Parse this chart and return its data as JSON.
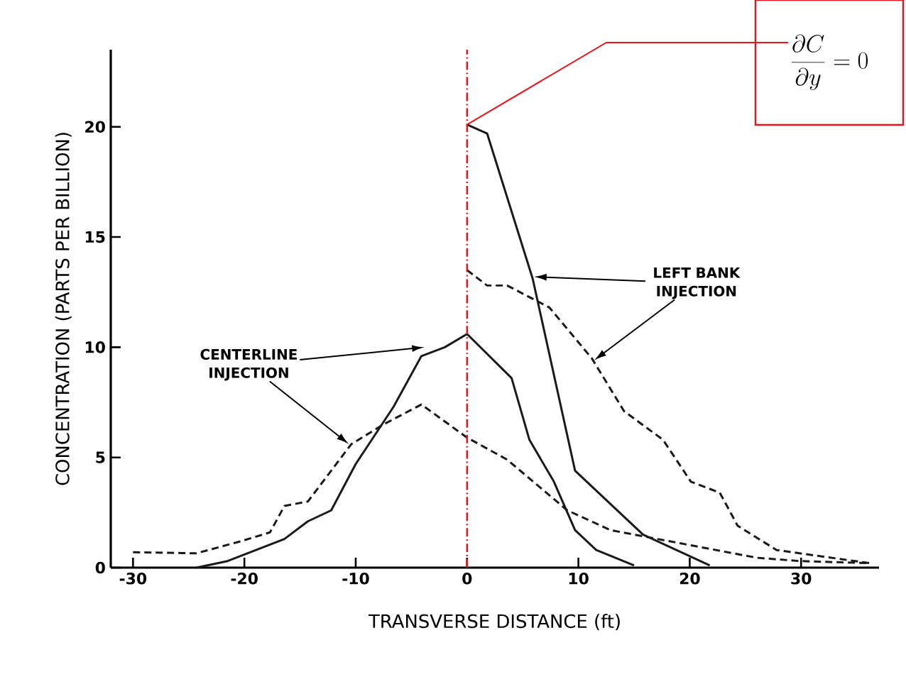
{
  "chart_data": {
    "type": "line",
    "xlabel": "TRANSVERSE DISTANCE (ft)",
    "ylabel": "CONCENTRATION (PARTS PER BILLION)",
    "xlim": [
      -32,
      37
    ],
    "ylim": [
      0,
      23.5
    ],
    "xticks": [
      -30,
      -20,
      -10,
      0,
      10,
      20,
      30
    ],
    "yticks": [
      0,
      5,
      10,
      15,
      20
    ],
    "grid": false,
    "marker": "none",
    "series": [
      {
        "color": "#1a1a1a",
        "line_style": "solid",
        "x": [
          -24.3,
          -21.5,
          -16.4,
          -14.3,
          -12.2,
          -10,
          -6.6,
          -4.1,
          -2,
          0,
          4,
          5.6,
          7.8,
          9.7,
          11.6,
          15
        ],
        "values": [
          0,
          0.3,
          1.3,
          2.1,
          2.6,
          4.7,
          7.3,
          9.6,
          10,
          10.6,
          8.6,
          5.8,
          3.9,
          1.7,
          0.8,
          0.1
        ]
      },
      {
        "color": "#1a1a1a",
        "line_style": "dashed",
        "x": [
          -30,
          -24.3,
          -20.3,
          -17.7,
          -16.4,
          -14.3,
          -10.4,
          -7.5,
          -4.1,
          0,
          3.6,
          9,
          12.9,
          19.2,
          26,
          29.8,
          36.2
        ],
        "values": [
          0.7,
          0.65,
          1.2,
          1.6,
          2.8,
          3,
          5.6,
          6.5,
          7.4,
          5.9,
          4.9,
          2.6,
          1.7,
          1.1,
          0.45,
          0.3,
          0.2
        ]
      },
      {
        "color": "#1a1a1a",
        "line_style": "solid",
        "x": [
          0,
          1.8,
          5.9,
          9.7,
          15.8,
          21.8
        ],
        "values": [
          20.1,
          19.7,
          13.1,
          4.4,
          1.5,
          0.1
        ]
      },
      {
        "color": "#1a1a1a",
        "line_style": "dashed",
        "x": [
          0,
          1.8,
          3.6,
          7.4,
          11.2,
          14.1,
          17.6,
          20.1,
          22.7,
          24.3,
          27.8,
          36.2
        ],
        "values": [
          13.5,
          12.8,
          12.8,
          11.8,
          9.5,
          7.1,
          5.8,
          3.9,
          3.4,
          1.9,
          0.8,
          0.2
        ]
      }
    ],
    "ref_lines": [
      {
        "axis": "x",
        "value": 0,
        "color": "#e8141b",
        "line_style": "dashdot"
      }
    ],
    "annotations": [
      {
        "text": "CENTERLINE INJECTION",
        "x": -3.8,
        "y": 10.0
      },
      {
        "text": "LEFT BANK INJECTION",
        "x": 6.0,
        "y": 13.2
      },
      {
        "text": "\\frac{\\partial C}{\\partial y}=0",
        "x": 0,
        "y": 20.1
      }
    ]
  }
}
